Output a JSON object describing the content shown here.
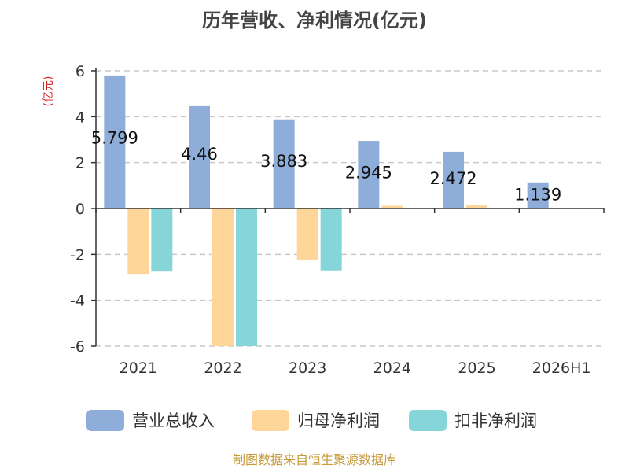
{
  "title": "历年营收、净利情况(亿元)",
  "source": "制图数据来自恒生聚源数据库",
  "colors": {
    "revenue": "#8eadd9",
    "net_profit": "#ffd699",
    "deducted_net_profit": "#86d6d9",
    "grid": "#c8c8c8",
    "axis": "#333333",
    "unit": "#d62728",
    "source": "#c49a3a"
  },
  "chart_data": {
    "type": "bar",
    "title": "历年营收、净利情况(亿元)",
    "ylabel": "(亿元)",
    "xlabel": "",
    "categories": [
      "2021",
      "2022",
      "2023",
      "2024",
      "2025",
      "2026H1"
    ],
    "series": [
      {
        "name": "营业总收入",
        "values": [
          5.799,
          4.46,
          3.883,
          2.945,
          2.472,
          1.139
        ],
        "color": "#8eadd9",
        "show_labels": true
      },
      {
        "name": "归母净利润",
        "values": [
          -2.85,
          -6.0,
          -2.25,
          0.12,
          0.14,
          0.03
        ],
        "color": "#ffd699",
        "show_labels": false
      },
      {
        "name": "扣非净利润",
        "values": [
          -2.75,
          -6.0,
          -2.7,
          0.02,
          0.02,
          0.02
        ],
        "color": "#86d6d9",
        "show_labels": false
      }
    ],
    "ylim": [
      -6,
      6
    ],
    "yticks": [
      6,
      4,
      2,
      0,
      -2,
      -4,
      -6
    ],
    "grid": true,
    "legend": "bottom"
  }
}
